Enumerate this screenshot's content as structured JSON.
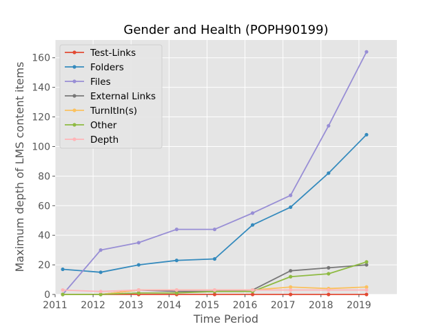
{
  "chart_data": {
    "type": "line",
    "title": "Gender and Health (POPH90199)",
    "xlabel": "Time Period",
    "ylabel": "Maximum depth of LMS content items",
    "xlim": [
      2011,
      2020
    ],
    "ylim": [
      0,
      172
    ],
    "xticks": [
      2011,
      2012,
      2013,
      2014,
      2015,
      2016,
      2017,
      2018,
      2019
    ],
    "yticks": [
      0,
      20,
      40,
      60,
      80,
      100,
      120,
      140,
      160
    ],
    "grid": true,
    "legend_position": "top-left",
    "x": [
      2011.2,
      2012.2,
      2013.2,
      2014.2,
      2015.2,
      2016.2,
      2017.2,
      2018.2,
      2019.2
    ],
    "series": [
      {
        "name": "Test-Links",
        "color": "#E24A33",
        "values": [
          0,
          0,
          0,
          0,
          0,
          0,
          0,
          0,
          0
        ]
      },
      {
        "name": "Folders",
        "color": "#348ABD",
        "values": [
          17,
          15,
          20,
          23,
          24,
          47,
          59,
          82,
          108
        ]
      },
      {
        "name": "Files",
        "color": "#988ED5",
        "values": [
          0,
          30,
          35,
          44,
          44,
          55,
          67,
          114,
          164
        ]
      },
      {
        "name": "External Links",
        "color": "#777777",
        "values": [
          0,
          0,
          3,
          2,
          2,
          3,
          16,
          18,
          20
        ]
      },
      {
        "name": "TurnItIn(s)",
        "color": "#FBC15E",
        "values": [
          0,
          0,
          3,
          3,
          3,
          3,
          5,
          4,
          5
        ]
      },
      {
        "name": "Other",
        "color": "#8EBA42",
        "values": [
          0,
          0,
          1,
          1,
          2,
          2,
          12,
          14,
          22
        ]
      },
      {
        "name": "Depth",
        "color": "#FFB5B8",
        "values": [
          3,
          2,
          3,
          3,
          3,
          3,
          3,
          3,
          3
        ]
      }
    ]
  }
}
